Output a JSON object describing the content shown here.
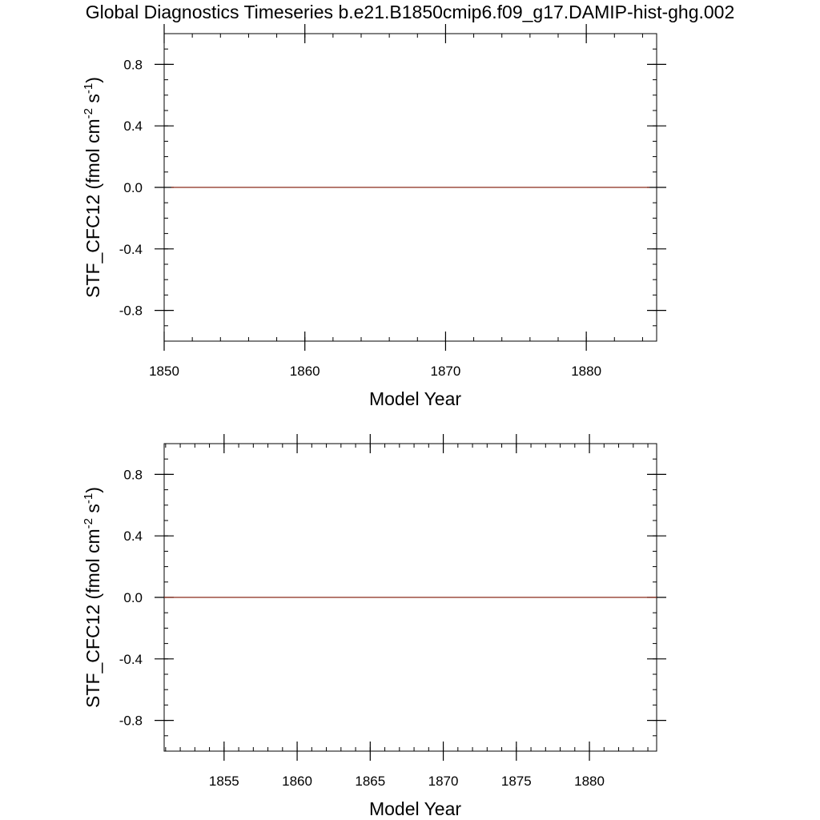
{
  "title": "Global Diagnostics Timeseries b.e21.B1850cmip6.f09_g17.DAMIP-hist-ghg.002",
  "chart_data": [
    {
      "type": "line",
      "xlabel": "Model Year",
      "ylabel": "STF_CFC12 (fmol cm",
      "ylabel_sup1": "-2",
      "ylabel_mid": " s",
      "ylabel_sup2": "-1",
      "ylabel_end": ")",
      "xlim": [
        1850,
        1885
      ],
      "ylim": [
        -1.0,
        1.0
      ],
      "x_major_ticks": [
        1850,
        1860,
        1870,
        1880
      ],
      "x_tick_labels": [
        "1850",
        "1860",
        "1870",
        "1880"
      ],
      "x_minor_step": 2,
      "y_major_ticks": [
        -0.8,
        -0.4,
        0.0,
        0.4,
        0.8
      ],
      "y_tick_labels": [
        "-0.8",
        "-0.4",
        "0.0",
        "0.4",
        "0.8"
      ],
      "y_minor_step": 0.1,
      "series": [
        {
          "color": "#8b2a1a",
          "x": [
            1850.5,
            1884.5
          ],
          "y": [
            0.0,
            0.0
          ]
        }
      ]
    },
    {
      "type": "line",
      "xlabel": "Model Year",
      "ylabel": "STF_CFC12 (fmol cm",
      "ylabel_sup1": "-2",
      "ylabel_mid": " s",
      "ylabel_sup2": "-1",
      "ylabel_end": ")",
      "xlim": [
        1850.9,
        1884.6
      ],
      "ylim": [
        -1.0,
        1.0
      ],
      "x_major_ticks": [
        1855,
        1860,
        1865,
        1870,
        1875,
        1880
      ],
      "x_tick_labels": [
        "1855",
        "1860",
        "1865",
        "1870",
        "1875",
        "1880"
      ],
      "x_minor_step": 1,
      "y_major_ticks": [
        -0.8,
        -0.4,
        0.0,
        0.4,
        0.8
      ],
      "y_tick_labels": [
        "-0.8",
        "-0.4",
        "0.0",
        "0.4",
        "0.8"
      ],
      "y_minor_step": 0.1,
      "series": [
        {
          "color": "#8b2a1a",
          "x": [
            1850.9,
            1884.6
          ],
          "y": [
            0.0,
            0.0
          ]
        }
      ]
    }
  ]
}
